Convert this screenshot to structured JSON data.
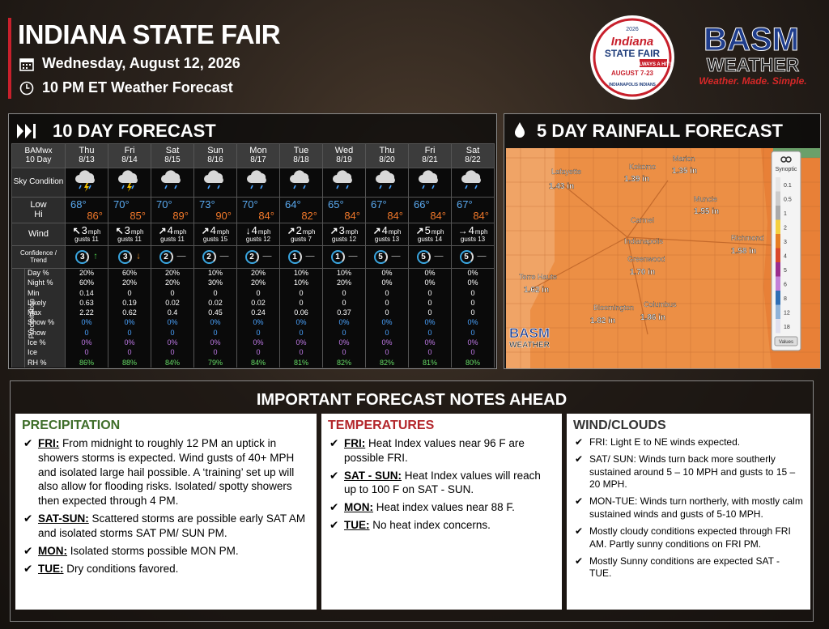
{
  "header": {
    "title": "INDIANA STATE FAIR",
    "date": "Wednesday, August 12, 2026",
    "time": "10 PM ET Weather Forecast"
  },
  "fair_logo": {
    "year": "2026",
    "name": "Indiana",
    "sub": "STATE FAIR",
    "motto": "ALWAYS A HIT!",
    "dates": "AUGUST 7-23",
    "sponsor": "INDIANAPOLIS INDIANS"
  },
  "basm_logo": {
    "name": "BASM",
    "sub": "WEATHER",
    "tagline": "Weather. Made. Simple."
  },
  "ten_day": {
    "title": "10 DAY FORECAST",
    "corner": [
      "BAMwx",
      "10 Day"
    ],
    "row_labels": {
      "sky": "Sky Condition",
      "low": "Low",
      "hi": "Hi",
      "wind": "Wind",
      "confidence": "Confidence / Trend"
    },
    "section_label": "Precipitation",
    "days": [
      {
        "day": "Thu",
        "date": "8/13",
        "low": "68°",
        "hi": "86°",
        "wind_arrow": "↖",
        "wind_speed": "3",
        "wind_unit": "mph",
        "gusts": "gusts 11",
        "confidence": "3",
        "trend": "↑"
      },
      {
        "day": "Fri",
        "date": "8/14",
        "low": "70°",
        "hi": "85°",
        "wind_arrow": "↖",
        "wind_speed": "3",
        "wind_unit": "mph",
        "gusts": "gusts 11",
        "confidence": "3",
        "trend": "↓"
      },
      {
        "day": "Sat",
        "date": "8/15",
        "low": "70°",
        "hi": "89°",
        "wind_arrow": "↗",
        "wind_speed": "4",
        "wind_unit": "mph",
        "gusts": "gusts 11",
        "confidence": "2",
        "trend": "—"
      },
      {
        "day": "Sun",
        "date": "8/16",
        "low": "73°",
        "hi": "90°",
        "wind_arrow": "↗",
        "wind_speed": "4",
        "wind_unit": "mph",
        "gusts": "gusts 15",
        "confidence": "2",
        "trend": "—"
      },
      {
        "day": "Mon",
        "date": "8/17",
        "low": "70°",
        "hi": "84°",
        "wind_arrow": "↓",
        "wind_speed": "4",
        "wind_unit": "mph",
        "gusts": "gusts 12",
        "confidence": "2",
        "trend": "—"
      },
      {
        "day": "Tue",
        "date": "8/18",
        "low": "64°",
        "hi": "82°",
        "wind_arrow": "↗",
        "wind_speed": "2",
        "wind_unit": "mph",
        "gusts": "gusts 7",
        "confidence": "1",
        "trend": "—"
      },
      {
        "day": "Wed",
        "date": "8/19",
        "low": "65°",
        "hi": "84°",
        "wind_arrow": "↗",
        "wind_speed": "3",
        "wind_unit": "mph",
        "gusts": "gusts 12",
        "confidence": "1",
        "trend": "—"
      },
      {
        "day": "Thu",
        "date": "8/20",
        "low": "67°",
        "hi": "84°",
        "wind_arrow": "↗",
        "wind_speed": "4",
        "wind_unit": "mph",
        "gusts": "gusts 13",
        "confidence": "5",
        "trend": "—"
      },
      {
        "day": "Fri",
        "date": "8/21",
        "low": "66°",
        "hi": "84°",
        "wind_arrow": "↗",
        "wind_speed": "5",
        "wind_unit": "mph",
        "gusts": "gusts 14",
        "confidence": "5",
        "trend": "—"
      },
      {
        "day": "Sat",
        "date": "8/22",
        "low": "67°",
        "hi": "84°",
        "wind_arrow": "→",
        "wind_speed": "4",
        "wind_unit": "mph",
        "gusts": "gusts 13",
        "confidence": "5",
        "trend": "—"
      }
    ],
    "precip": [
      {
        "label": "Day %",
        "values": [
          "20%",
          "60%",
          "20%",
          "10%",
          "20%",
          "10%",
          "10%",
          "0%",
          "0%",
          "0%"
        ]
      },
      {
        "label": "Night %",
        "values": [
          "60%",
          "20%",
          "20%",
          "30%",
          "20%",
          "10%",
          "20%",
          "0%",
          "0%",
          "0%"
        ]
      },
      {
        "label": "Min",
        "values": [
          "0.14",
          "0",
          "0",
          "0",
          "0",
          "0",
          "0",
          "0",
          "0",
          "0"
        ]
      },
      {
        "label": "Likely",
        "values": [
          "0.63",
          "0.19",
          "0.02",
          "0.02",
          "0.02",
          "0",
          "0",
          "0",
          "0",
          "0"
        ]
      },
      {
        "label": "Max",
        "values": [
          "2.22",
          "0.62",
          "0.4",
          "0.45",
          "0.24",
          "0.06",
          "0.37",
          "0",
          "0",
          "0"
        ]
      },
      {
        "label": "Snow %",
        "values": [
          "0%",
          "0%",
          "0%",
          "0%",
          "0%",
          "0%",
          "0%",
          "0%",
          "0%",
          "0%"
        ]
      },
      {
        "label": "Snow",
        "values": [
          "0",
          "0",
          "0",
          "0",
          "0",
          "0",
          "0",
          "0",
          "0",
          "0"
        ]
      },
      {
        "label": "Ice %",
        "values": [
          "0%",
          "0%",
          "0%",
          "0%",
          "0%",
          "0%",
          "0%",
          "0%",
          "0%",
          "0%"
        ]
      },
      {
        "label": "Ice",
        "values": [
          "0",
          "0",
          "0",
          "0",
          "0",
          "0",
          "0",
          "0",
          "0",
          "0"
        ]
      },
      {
        "label": "RH %",
        "values": [
          "86%",
          "88%",
          "84%",
          "79%",
          "84%",
          "81%",
          "82%",
          "82%",
          "81%",
          "80%"
        ]
      }
    ]
  },
  "rainfall": {
    "title": "5 DAY RAINFALL FORECAST",
    "cities": [
      {
        "name": "Lafayette",
        "amount": "1.43 in"
      },
      {
        "name": "Kokomo",
        "amount": "1.39 in"
      },
      {
        "name": "Marion",
        "amount": "1.35 in"
      },
      {
        "name": "Muncie",
        "amount": "1.55 in"
      },
      {
        "name": "Carmel"
      },
      {
        "name": "Indianapolis"
      },
      {
        "name": "Greenwood",
        "amount": "1.70 in"
      },
      {
        "name": "Richmond",
        "amount": "1.58 in"
      },
      {
        "name": "Terre Haute",
        "amount": "1.62 in"
      },
      {
        "name": "Bloomington",
        "amount": "1.82 in"
      },
      {
        "name": "Columbus",
        "amount": "1.86 in"
      }
    ],
    "legend": {
      "title": "Synoptic",
      "levels": [
        "0.1",
        "0.5",
        "1",
        "2",
        "3",
        "4",
        "5",
        "6",
        "8",
        "12",
        "18"
      ],
      "button": "Values"
    },
    "watermark": {
      "name": "BASM",
      "sub": "WEATHER"
    }
  },
  "notes": {
    "title": "IMPORTANT FORECAST NOTES AHEAD",
    "columns": [
      {
        "heading": "PRECIPITATION",
        "items": [
          {
            "lead": "FRI:",
            "text": "From midnight to roughly 12 PM an uptick in showers storms is expected. Wind gusts of 40+ MPH and isolated large hail possible. A ‘training’ set up will also allow for flooding risks. Isolated/ spotty showers then expected through 4 PM."
          },
          {
            "lead": "SAT-SUN:",
            "text": "Scattered storms are possible early SAT AM and isolated storms SAT PM/ SUN PM."
          },
          {
            "lead": "MON:",
            "text": "Isolated storms possible MON PM."
          },
          {
            "lead": "TUE:",
            "text": "Dry conditions favored."
          }
        ]
      },
      {
        "heading": "TEMPERATURES",
        "items": [
          {
            "lead": "FRI:",
            "text": "Heat Index values near 96 F are possible FRI."
          },
          {
            "lead": "SAT - SUN:",
            "text": "Heat Index values will reach up to 100 F on SAT - SUN."
          },
          {
            "lead": "MON:",
            "text": "Heat index values near 88 F."
          },
          {
            "lead": "TUE:",
            "text": "No heat index concerns."
          }
        ]
      },
      {
        "heading": "WIND/CLOUDS",
        "items": [
          {
            "text": "FRI:  Light E to NE winds expected."
          },
          {
            "text": "SAT/ SUN:  Winds turn back more southerly sustained around 5 – 10 MPH and gusts to 15 – 20 MPH."
          },
          {
            "text": "MON-TUE: Winds turn northerly, with mostly calm sustained winds and gusts of 5-10 MPH."
          },
          {
            "text": "Mostly cloudy conditions expected through FRI AM.  Partly sunny conditions on FRI PM."
          },
          {
            "text": "Mostly Sunny conditions are expected SAT - TUE."
          }
        ]
      }
    ]
  }
}
